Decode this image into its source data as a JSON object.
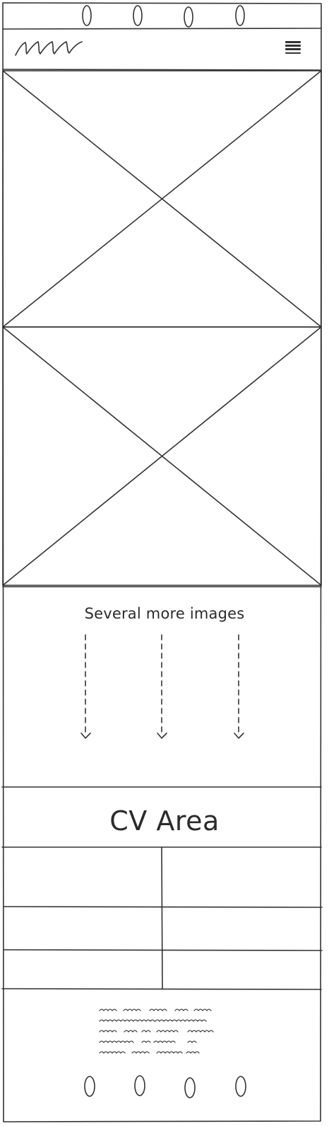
{
  "header": {
    "logo": "scribble-logo",
    "menu_icon": "hamburger-menu-icon"
  },
  "top_nav": {
    "dots": [
      "nav-dot-1",
      "nav-dot-2",
      "nav-dot-3",
      "nav-dot-4"
    ]
  },
  "gallery": {
    "placeholders": [
      "image-placeholder-1",
      "image-placeholder-2"
    ],
    "more_caption": "Several more images"
  },
  "cv": {
    "title": "CV Area",
    "rows": 3,
    "cols": 2
  },
  "footer": {
    "text_lines": 5,
    "dots": [
      "footer-dot-1",
      "footer-dot-2",
      "footer-dot-3",
      "footer-dot-4"
    ]
  },
  "colors": {
    "ink": "#333333",
    "paper": "#ffffff"
  }
}
